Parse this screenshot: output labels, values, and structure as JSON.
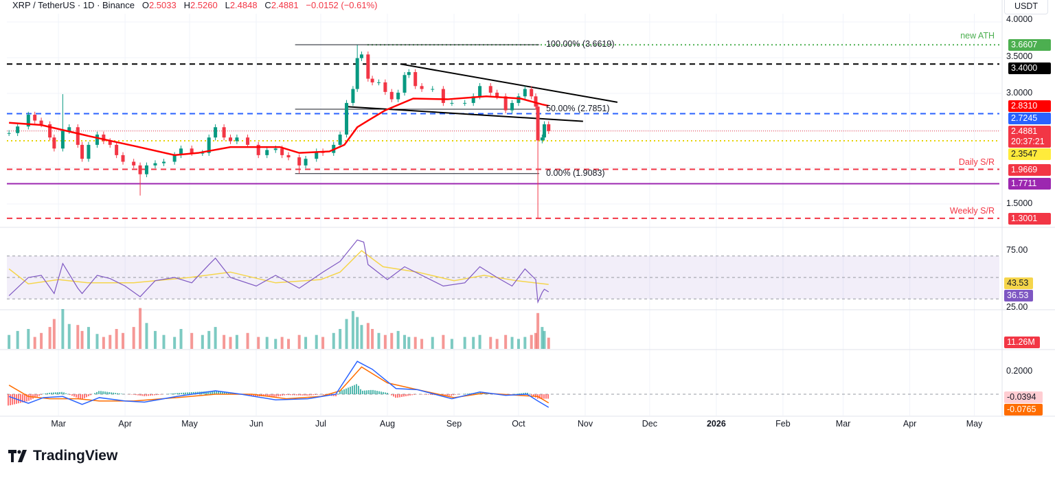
{
  "header": {
    "symbol": "XRP / TetherUS · 1D · Binance",
    "o_label": "O",
    "o": "2.5033",
    "h_label": "H",
    "h": "2.5260",
    "l_label": "L",
    "l": "2.4848",
    "c_label": "C",
    "c": "2.4881",
    "change": "−0.0152 (−0.61%)"
  },
  "currency": "USDT",
  "brand": "TradingView",
  "colors": {
    "up": "#089981",
    "down": "#f23645",
    "ma": "#ff0000",
    "rsi": "#7e57c2",
    "rsi_ma": "#f5d54b",
    "macd": "#2962ff",
    "signal": "#ff6d00"
  },
  "chart_data": [
    {
      "type": "candlestick",
      "pane": "price",
      "yscale": "linear",
      "ylim": [
        1.2,
        4.05
      ],
      "y_ticks": [
        "4.0000",
        "3.5000",
        "3.0000",
        "1.5000"
      ],
      "x_ticks": [
        "Mar",
        "Apr",
        "May",
        "Jun",
        "Jul",
        "Aug",
        "Sep",
        "Oct",
        "Nov",
        "Dec",
        "2026",
        "Feb",
        "Mar",
        "Apr",
        "May"
      ],
      "x_tick_dates": [
        "2025-03-01",
        "2025-04-01",
        "2025-05-01",
        "2025-06-01",
        "2025-07-01",
        "2025-08-01",
        "2025-09-01",
        "2025-10-01",
        "2025-11-01",
        "2025-12-01",
        "2026-01-01",
        "2026-02-01",
        "2026-03-01",
        "2026-04-01",
        "2026-05-01"
      ],
      "dates": [
        "2025-02-06",
        "2025-02-10",
        "2025-02-15",
        "2025-02-18",
        "2025-02-21",
        "2025-02-25",
        "2025-02-27",
        "2025-03-03",
        "2025-03-06",
        "2025-03-10",
        "2025-03-12",
        "2025-03-15",
        "2025-03-19",
        "2025-03-22",
        "2025-03-25",
        "2025-03-28",
        "2025-03-31",
        "2025-04-05",
        "2025-04-08",
        "2025-04-11",
        "2025-04-15",
        "2025-04-19",
        "2025-04-24",
        "2025-04-27",
        "2025-05-02",
        "2025-05-07",
        "2025-05-10",
        "2025-05-13",
        "2025-05-17",
        "2025-05-20",
        "2025-05-23",
        "2025-05-28",
        "2025-06-02",
        "2025-06-06",
        "2025-06-10",
        "2025-06-13",
        "2025-06-16",
        "2025-06-21",
        "2025-06-24",
        "2025-06-29",
        "2025-07-02",
        "2025-07-07",
        "2025-07-10",
        "2025-07-13",
        "2025-07-16",
        "2025-07-18",
        "2025-07-20",
        "2025-07-23",
        "2025-07-25",
        "2025-07-28",
        "2025-07-31",
        "2025-08-03",
        "2025-08-06",
        "2025-08-09",
        "2025-08-11",
        "2025-08-14",
        "2025-08-17",
        "2025-08-22",
        "2025-08-27",
        "2025-08-31",
        "2025-09-06",
        "2025-09-10",
        "2025-09-13",
        "2025-09-18",
        "2025-09-21",
        "2025-09-25",
        "2025-09-28",
        "2025-10-01",
        "2025-10-04",
        "2025-10-07",
        "2025-10-09",
        "2025-10-10",
        "2025-10-12",
        "2025-10-13",
        "2025-10-15"
      ],
      "close": [
        2.46,
        2.55,
        2.71,
        2.63,
        2.58,
        2.4,
        2.25,
        2.49,
        2.54,
        2.3,
        2.11,
        2.3,
        2.44,
        2.35,
        2.3,
        2.16,
        2.07,
        2.02,
        1.9,
        2.02,
        2.05,
        2.07,
        2.16,
        2.25,
        2.19,
        2.19,
        2.4,
        2.54,
        2.4,
        2.35,
        2.4,
        2.3,
        2.16,
        2.23,
        2.25,
        2.16,
        2.13,
        2.02,
        2.11,
        2.21,
        2.19,
        2.3,
        2.44,
        2.87,
        3.06,
        3.48,
        3.53,
        3.2,
        3.15,
        3.15,
        3.02,
        2.92,
        3.01,
        3.25,
        3.29,
        3.1,
        3.06,
        3.06,
        2.87,
        2.87,
        2.87,
        2.96,
        3.1,
        3.01,
        2.96,
        2.77,
        2.87,
        2.96,
        3.06,
        2.96,
        2.82,
        2.36,
        2.4,
        2.58,
        2.4881
      ],
      "wick_extremes": [
        {
          "date": "2025-03-03",
          "high": 2.99
        },
        {
          "date": "2025-04-08",
          "low": 1.61
        },
        {
          "date": "2025-06-21",
          "low": 1.91
        },
        {
          "date": "2025-07-18",
          "high": 3.66
        },
        {
          "date": "2025-10-10",
          "low": 1.3
        }
      ],
      "moving_average": {
        "dates": [
          "2025-02-06",
          "2025-02-21",
          "2025-03-15",
          "2025-04-06",
          "2025-04-24",
          "2025-05-05",
          "2025-05-20",
          "2025-06-12",
          "2025-06-21",
          "2025-07-05",
          "2025-07-12",
          "2025-07-18",
          "2025-07-23",
          "2025-07-31",
          "2025-08-13",
          "2025-08-29",
          "2025-09-16",
          "2025-10-02",
          "2025-10-12",
          "2025-10-15"
        ],
        "values": [
          2.6,
          2.57,
          2.42,
          2.28,
          2.16,
          2.19,
          2.27,
          2.27,
          2.19,
          2.21,
          2.3,
          2.54,
          2.63,
          2.77,
          2.93,
          2.92,
          2.96,
          2.93,
          2.85,
          2.831
        ]
      },
      "levels": [
        {
          "value": 3.6607,
          "label": "3.6607",
          "color": "#4caf50",
          "style": "dotted",
          "note": "new ATH"
        },
        {
          "value": 3.4,
          "label": "3.4000",
          "color": "#000000",
          "style": "dashed"
        },
        {
          "value": 2.831,
          "label": "2.8310",
          "color": "#ff0000",
          "style": "none"
        },
        {
          "value": 2.7245,
          "label": "2.7245",
          "color": "#2962ff",
          "style": "dashed"
        },
        {
          "value": 2.4881,
          "label": "2.4881",
          "color": "#f23645",
          "style": "dotted-thin",
          "countdown": "20:37:21"
        },
        {
          "value": 2.3547,
          "label": "2.3547",
          "color": "#ffeb3b",
          "style": "dotted"
        },
        {
          "value": 1.9669,
          "label": "1.9669",
          "color": "#f23645",
          "style": "dashed",
          "note": "Daily S/R"
        },
        {
          "value": 1.7711,
          "label": "1.7711",
          "color": "#9c27b0",
          "style": "solid"
        },
        {
          "value": 1.3001,
          "label": "1.3001",
          "color": "#f23645",
          "style": "dashed",
          "note": "Weekly S/R"
        }
      ],
      "fibonacci": [
        {
          "level": "100.00%",
          "value": 3.6619,
          "label": "100.00% (3.6619)"
        },
        {
          "level": "50.00%",
          "value": 2.7851,
          "label": "50.00% (2.7851)"
        },
        {
          "level": "0.00%",
          "value": 1.9083,
          "label": "0.00% (1.9083)"
        }
      ],
      "fib_range": {
        "start": "2025-06-21",
        "end": "2025-10-10"
      },
      "trendlines": [
        {
          "from": {
            "date": "2025-08-07",
            "value": 3.4
          },
          "to": {
            "date": "2025-11-16",
            "value": 2.88
          }
        },
        {
          "from": {
            "date": "2025-07-13",
            "value": 2.82
          },
          "to": {
            "date": "2025-10-31",
            "value": 2.62
          }
        }
      ]
    },
    {
      "type": "line",
      "pane": "rsi",
      "ylim": [
        20,
        90
      ],
      "y_ticks": [
        "75.00",
        "25.00"
      ],
      "band": [
        30,
        70
      ],
      "mid": 50,
      "series": [
        {
          "key": "rsi",
          "dates": [
            "2025-02-06",
            "2025-02-15",
            "2025-02-21",
            "2025-02-27",
            "2025-03-03",
            "2025-03-10",
            "2025-03-12",
            "2025-03-19",
            "2025-03-25",
            "2025-04-01",
            "2025-04-08",
            "2025-04-15",
            "2025-04-24",
            "2025-05-02",
            "2025-05-10",
            "2025-05-13",
            "2025-05-20",
            "2025-06-01",
            "2025-06-10",
            "2025-06-21",
            "2025-07-02",
            "2025-07-10",
            "2025-07-16",
            "2025-07-18",
            "2025-07-21",
            "2025-07-23",
            "2025-08-01",
            "2025-08-09",
            "2025-08-17",
            "2025-08-27",
            "2025-09-06",
            "2025-09-13",
            "2025-09-21",
            "2025-09-28",
            "2025-10-04",
            "2025-10-09",
            "2025-10-10",
            "2025-10-12",
            "2025-10-13",
            "2025-10-15"
          ],
          "values": [
            33,
            50,
            52,
            35,
            63,
            40,
            35,
            52,
            49,
            42,
            32,
            47,
            50,
            45,
            62,
            68,
            50,
            42,
            52,
            40,
            55,
            65,
            80,
            85,
            83,
            62,
            48,
            60,
            52,
            42,
            45,
            60,
            50,
            42,
            58,
            48,
            27,
            36,
            39,
            36.53
          ]
        },
        {
          "key": "rsi_ma",
          "dates": [
            "2025-02-06",
            "2025-02-15",
            "2025-03-01",
            "2025-03-15",
            "2025-04-05",
            "2025-05-01",
            "2025-05-20",
            "2025-06-10",
            "2025-07-01",
            "2025-07-10",
            "2025-07-20",
            "2025-07-30",
            "2025-08-15",
            "2025-09-01",
            "2025-09-15",
            "2025-09-30",
            "2025-10-15"
          ],
          "values": [
            58,
            44,
            48,
            45,
            45,
            50,
            55,
            45,
            48,
            55,
            75,
            60,
            55,
            47,
            52,
            47,
            43.53
          ]
        }
      ],
      "labels": {
        "rsi_ma": "43.53",
        "rsi": "36.53"
      }
    },
    {
      "type": "bar",
      "pane": "volume",
      "unit": "M",
      "last_label": "11.26M",
      "values": [
        14,
        18,
        20,
        12,
        16,
        22,
        30,
        40,
        25,
        24,
        18,
        22,
        15,
        12,
        14,
        20,
        16,
        22,
        41,
        26,
        18,
        14,
        12,
        20,
        16,
        14,
        18,
        22,
        14,
        12,
        14,
        16,
        12,
        12,
        10,
        12,
        10,
        14,
        12,
        14,
        12,
        16,
        20,
        30,
        38,
        32,
        24,
        26,
        20,
        16,
        14,
        16,
        18,
        14,
        12,
        12,
        10,
        12,
        14,
        10,
        12,
        12,
        14,
        12,
        10,
        14,
        12,
        10,
        12,
        14,
        16,
        36,
        22,
        18,
        11.26
      ]
    },
    {
      "type": "line",
      "pane": "macd",
      "ylim": [
        -0.15,
        0.32
      ],
      "y_ticks": [
        "0.2000"
      ],
      "series": [
        {
          "key": "macd",
          "dates": [
            "2025-02-06",
            "2025-02-15",
            "2025-02-22",
            "2025-03-03",
            "2025-03-12",
            "2025-03-20",
            "2025-04-01",
            "2025-04-10",
            "2025-04-25",
            "2025-05-13",
            "2025-05-25",
            "2025-06-10",
            "2025-06-25",
            "2025-07-08",
            "2025-07-18",
            "2025-07-25",
            "2025-08-05",
            "2025-08-15",
            "2025-08-31",
            "2025-09-13",
            "2025-09-25",
            "2025-10-05",
            "2025-10-10",
            "2025-10-15"
          ],
          "values": [
            -0.02,
            -0.08,
            -0.03,
            -0.02,
            -0.09,
            -0.03,
            -0.06,
            -0.07,
            -0.02,
            0.03,
            0.0,
            -0.05,
            -0.04,
            0.0,
            0.29,
            0.22,
            0.05,
            0.04,
            -0.04,
            0.02,
            -0.01,
            0.0,
            -0.06,
            -0.116
          ]
        },
        {
          "key": "signal",
          "dates": [
            "2025-02-06",
            "2025-02-15",
            "2025-02-25",
            "2025-03-10",
            "2025-03-20",
            "2025-04-05",
            "2025-04-25",
            "2025-05-13",
            "2025-05-30",
            "2025-06-15",
            "2025-07-01",
            "2025-07-10",
            "2025-07-20",
            "2025-08-01",
            "2025-08-15",
            "2025-09-01",
            "2025-09-15",
            "2025-10-01",
            "2025-10-10",
            "2025-10-15"
          ],
          "values": [
            0.08,
            -0.02,
            -0.04,
            -0.04,
            -0.06,
            -0.06,
            -0.03,
            0.0,
            0.0,
            -0.04,
            -0.02,
            0.03,
            0.24,
            0.1,
            0.04,
            -0.03,
            0.01,
            -0.01,
            -0.02,
            -0.0765
          ]
        }
      ],
      "labels": {
        "histogram": "-0.0394",
        "signal": "-0.0765"
      }
    }
  ]
}
